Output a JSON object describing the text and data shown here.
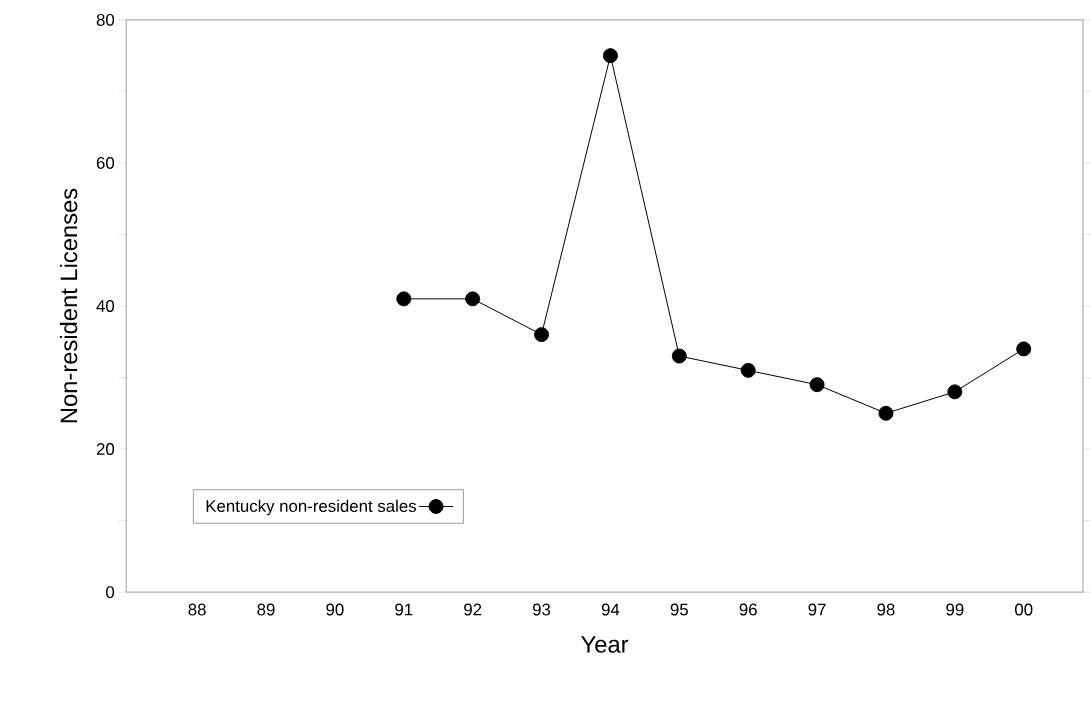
{
  "chart_data": {
    "type": "line",
    "xlabel": "Year",
    "ylabel": "Non-resident Licenses",
    "categories": [
      "88",
      "89",
      "90",
      "91",
      "92",
      "93",
      "94",
      "95",
      "96",
      "97",
      "98",
      "99",
      "00"
    ],
    "series": [
      {
        "name": "Kentucky non-resident sales",
        "color": "#000000",
        "values": [
          null,
          null,
          null,
          41,
          41,
          36,
          75,
          33,
          31,
          29,
          25,
          28,
          34
        ]
      }
    ],
    "ylim": [
      0,
      80
    ],
    "yticks": [
      0,
      {
        "value": 10,
        "label": null
      },
      20,
      {
        "value": 30,
        "label": null
      },
      40,
      {
        "value": 50,
        "label": null
      },
      60,
      {
        "value": 70,
        "label": null
      },
      80
    ],
    "marker": "circle",
    "line_style": "solid",
    "legend": "bottom left",
    "grid": false
  }
}
